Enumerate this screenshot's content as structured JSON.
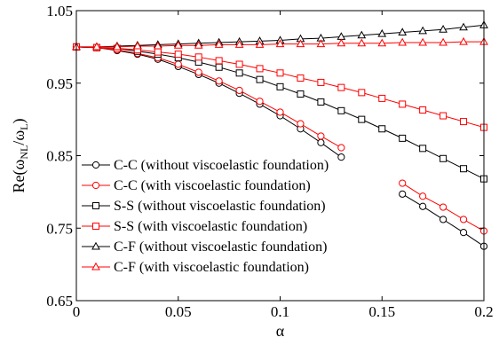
{
  "chart_data": {
    "type": "line",
    "xlabel": "α",
    "ylabel_main": "Re(ω",
    "ylabel_sub1": "NL",
    "ylabel_mid": "/ω",
    "ylabel_sub2": "L",
    "ylabel_end": ")",
    "xlim": [
      0,
      0.2
    ],
    "ylim": [
      0.65,
      1.05
    ],
    "xticks": [
      0,
      0.05,
      0.1,
      0.15,
      0.2
    ],
    "xtick_labels": [
      "0",
      "0.05",
      "0.1",
      "0.15",
      "0.2"
    ],
    "yticks": [
      0.65,
      0.75,
      0.85,
      0.95,
      1.05
    ],
    "ytick_labels": [
      "0.65",
      "0.75",
      "0.85",
      "0.95",
      "1.05"
    ],
    "grid": false,
    "legend_position": "bottom-left",
    "series": [
      {
        "name": "C-C (without viscoelastic foundation)",
        "color": "#000000",
        "marker": "circle",
        "x": [
          0,
          0.01,
          0.02,
          0.03,
          0.04,
          0.05,
          0.06,
          0.07,
          0.08,
          0.09,
          0.1,
          0.11,
          0.12,
          0.13,
          0.16,
          0.17,
          0.18,
          0.19,
          0.2
        ],
        "y": [
          1.0,
          0.999,
          0.995,
          0.99,
          0.983,
          0.973,
          0.962,
          0.95,
          0.936,
          0.921,
          0.905,
          0.887,
          0.868,
          0.848,
          0.797,
          0.78,
          0.762,
          0.744,
          0.725
        ]
      },
      {
        "name": "C-C (with viscoelastic foundation)",
        "color": "#ff0000",
        "marker": "circle",
        "x": [
          0,
          0.01,
          0.02,
          0.03,
          0.04,
          0.05,
          0.06,
          0.07,
          0.08,
          0.09,
          0.1,
          0.11,
          0.12,
          0.13,
          0.16,
          0.17,
          0.18,
          0.19,
          0.2
        ],
        "y": [
          1.0,
          0.999,
          0.996,
          0.991,
          0.985,
          0.976,
          0.965,
          0.953,
          0.94,
          0.925,
          0.91,
          0.894,
          0.877,
          0.861,
          0.812,
          0.794,
          0.779,
          0.762,
          0.746
        ]
      },
      {
        "name": "S-S (without viscoelastic foundation)",
        "color": "#000000",
        "marker": "square",
        "x": [
          0,
          0.01,
          0.02,
          0.03,
          0.04,
          0.05,
          0.06,
          0.07,
          0.08,
          0.09,
          0.1,
          0.11,
          0.12,
          0.13,
          0.14,
          0.15,
          0.16,
          0.17,
          0.18,
          0.19,
          0.2
        ],
        "y": [
          1.0,
          0.999,
          0.998,
          0.994,
          0.99,
          0.985,
          0.979,
          0.972,
          0.964,
          0.955,
          0.945,
          0.935,
          0.924,
          0.912,
          0.9,
          0.887,
          0.874,
          0.86,
          0.846,
          0.832,
          0.818
        ]
      },
      {
        "name": "S-S (with viscoelastic foundation)",
        "color": "#ff0000",
        "marker": "square",
        "x": [
          0,
          0.01,
          0.02,
          0.03,
          0.04,
          0.05,
          0.06,
          0.07,
          0.08,
          0.09,
          0.1,
          0.11,
          0.12,
          0.13,
          0.14,
          0.15,
          0.16,
          0.17,
          0.18,
          0.19,
          0.2
        ],
        "y": [
          1.0,
          0.999,
          0.998,
          0.996,
          0.993,
          0.99,
          0.986,
          0.981,
          0.976,
          0.97,
          0.964,
          0.957,
          0.951,
          0.944,
          0.937,
          0.929,
          0.921,
          0.913,
          0.905,
          0.897,
          0.889
        ]
      },
      {
        "name": "C-F (without viscoelastic foundation)",
        "color": "#000000",
        "marker": "triangle",
        "x": [
          0,
          0.01,
          0.02,
          0.03,
          0.04,
          0.05,
          0.06,
          0.07,
          0.08,
          0.09,
          0.1,
          0.11,
          0.12,
          0.13,
          0.14,
          0.15,
          0.16,
          0.17,
          0.18,
          0.19,
          0.2
        ],
        "y": [
          1.0,
          1.0,
          1.001,
          1.002,
          1.003,
          1.004,
          1.005,
          1.006,
          1.007,
          1.008,
          1.009,
          1.011,
          1.012,
          1.014,
          1.016,
          1.018,
          1.02,
          1.022,
          1.024,
          1.027,
          1.03
        ]
      },
      {
        "name": "C-F (with viscoelastic foundation)",
        "color": "#ff0000",
        "marker": "triangle",
        "x": [
          0,
          0.01,
          0.02,
          0.03,
          0.04,
          0.05,
          0.06,
          0.07,
          0.08,
          0.09,
          0.1,
          0.11,
          0.12,
          0.13,
          0.14,
          0.15,
          0.16,
          0.17,
          0.18,
          0.19,
          0.2
        ],
        "y": [
          1.0,
          1.0,
          1.0,
          1.001,
          1.001,
          1.002,
          1.002,
          1.003,
          1.003,
          1.003,
          1.004,
          1.004,
          1.004,
          1.005,
          1.005,
          1.005,
          1.006,
          1.006,
          1.006,
          1.007,
          1.007
        ]
      }
    ]
  }
}
